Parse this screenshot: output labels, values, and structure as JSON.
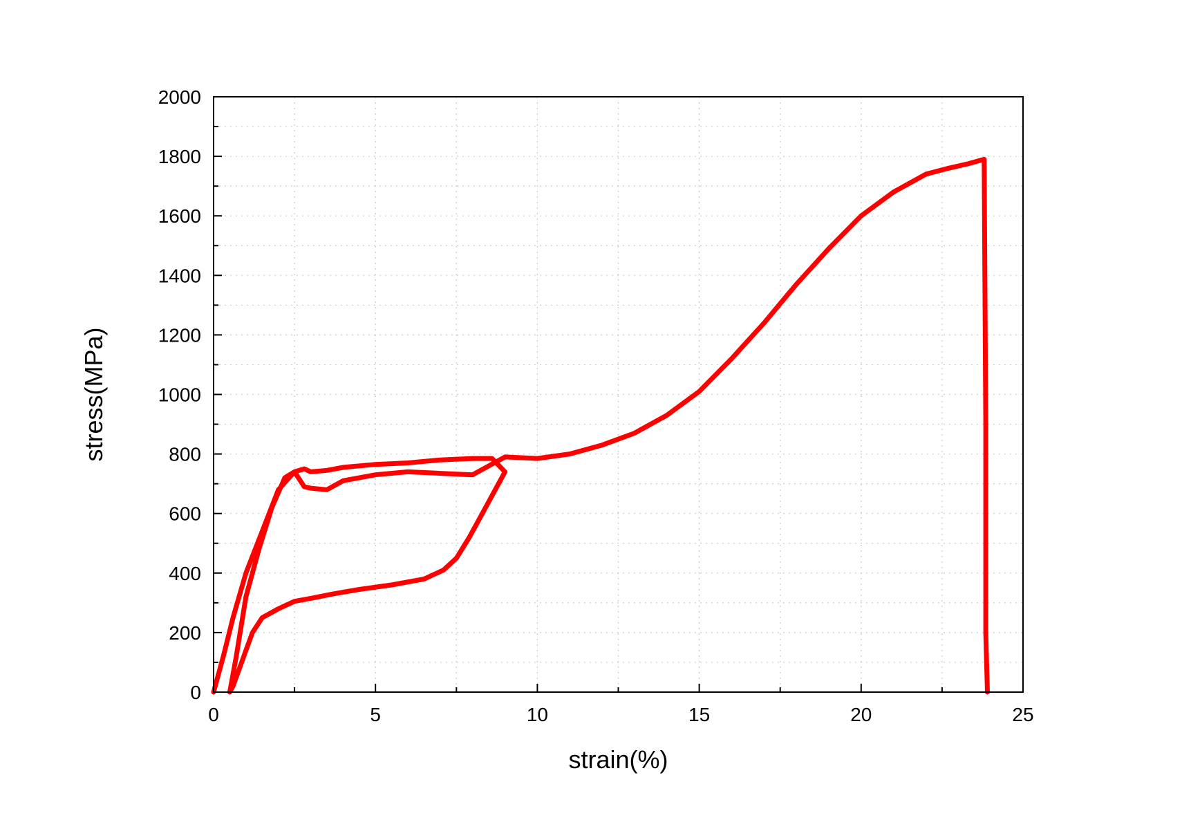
{
  "chart_data": {
    "type": "line",
    "title": "",
    "xlabel": "strain(%)",
    "ylabel": "stress(MPa)",
    "xlim": [
      0,
      25
    ],
    "ylim": [
      0,
      2000
    ],
    "x_ticks": [
      0,
      5,
      10,
      15,
      20,
      25
    ],
    "y_ticks": [
      0,
      200,
      400,
      600,
      800,
      1000,
      1200,
      1400,
      1600,
      1800,
      2000
    ],
    "x_tick_labels": [
      "0",
      "5",
      "10",
      "15",
      "20",
      "25"
    ],
    "y_tick_labels": [
      "0",
      "200",
      "400",
      "600",
      "800",
      "1000",
      "1200",
      "1400",
      "1600",
      "1800",
      "2000"
    ],
    "grid": true,
    "legend": "none",
    "colors": {
      "series": "#ff0000",
      "axis": "#000000",
      "grid": "#c8c8c8",
      "background": "#ffffff"
    },
    "series": [
      {
        "color": "#ff0000",
        "x": [
          0,
          0.3,
          0.6,
          1.0,
          1.5,
          2.0,
          2.5,
          2.8,
          3.0,
          3.5,
          4.0,
          4.5,
          5.0,
          6.0,
          7.0,
          8.0,
          8.6,
          9.0,
          8.7,
          8.3,
          7.9,
          7.5,
          7.1,
          6.5,
          5.5,
          4.5,
          3.7,
          3.0,
          2.5,
          2.0,
          1.5,
          1.2,
          1.0,
          0.8,
          0.6,
          0.5,
          0.7,
          1.0,
          1.4,
          1.8,
          2.2,
          2.5,
          2.8,
          3.0,
          3.5,
          4.0,
          5.0,
          6.0,
          7.0,
          8.0,
          9.0,
          10.0,
          11.0,
          12.0,
          13.0,
          14.0,
          15.0,
          16.0,
          17.0,
          18.0,
          19.0,
          20.0,
          21.0,
          22.0,
          22.7,
          23.3,
          23.8,
          23.85,
          23.85,
          23.9
        ],
        "y": [
          0,
          120,
          250,
          400,
          540,
          680,
          740,
          750,
          740,
          745,
          755,
          760,
          765,
          770,
          780,
          785,
          785,
          740,
          680,
          600,
          520,
          450,
          410,
          380,
          360,
          345,
          330,
          315,
          305,
          280,
          250,
          200,
          140,
          80,
          20,
          0,
          120,
          320,
          480,
          620,
          720,
          740,
          690,
          685,
          680,
          710,
          730,
          740,
          735,
          730,
          790,
          785,
          800,
          830,
          870,
          930,
          1010,
          1120,
          1240,
          1370,
          1490,
          1600,
          1680,
          1740,
          1760,
          1775,
          1790,
          900,
          200,
          0
        ]
      }
    ]
  }
}
